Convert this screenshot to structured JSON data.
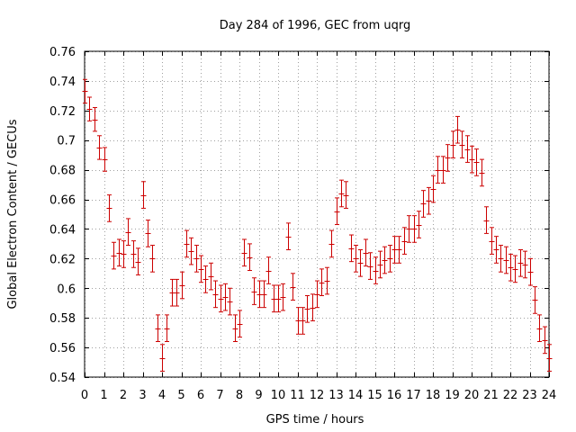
{
  "chart_data": {
    "type": "scatter",
    "title": "Day 284 of 1996, GEC from uqrg",
    "xlabel": "GPS time / hours",
    "ylabel": "Global Electron Content / GECUs",
    "xlim": [
      0,
      24
    ],
    "ylim": [
      0.54,
      0.76
    ],
    "xticks": [
      "0",
      "1",
      "2",
      "3",
      "4",
      "5",
      "6",
      "7",
      "8",
      "9",
      "10",
      "11",
      "12",
      "13",
      "14",
      "15",
      "16",
      "17",
      "18",
      "19",
      "20",
      "21",
      "22",
      "23",
      "24"
    ],
    "yticks": [
      "0.54",
      "0.56",
      "0.58",
      "0.6",
      "0.62",
      "0.64",
      "0.66",
      "0.68",
      "0.7",
      "0.72",
      "0.74",
      "0.76"
    ],
    "grid": true,
    "marker_color": "#cc0000",
    "series": [
      {
        "x": [
          0.0,
          0.25,
          0.5,
          0.75,
          1.0,
          1.25,
          1.5,
          1.75,
          2.0,
          2.25,
          2.5,
          2.75,
          3.0,
          3.25,
          3.5,
          3.75,
          4.0,
          4.25,
          4.5,
          4.75,
          5.0,
          5.25,
          5.5,
          5.75,
          6.0,
          6.25,
          6.5,
          6.75,
          7.0,
          7.25,
          7.5,
          7.75,
          8.0,
          8.25,
          8.5,
          8.75,
          9.0,
          9.25,
          9.5,
          9.75,
          10.0,
          10.25,
          10.5,
          10.75,
          11.0,
          11.25,
          11.5,
          11.75,
          12.0,
          12.25,
          12.5,
          12.75,
          13.0,
          13.25,
          13.5,
          13.75,
          14.0,
          14.25,
          14.5,
          14.75,
          15.0,
          15.25,
          15.5,
          15.75,
          16.0,
          16.25,
          16.5,
          16.75,
          17.0,
          17.25,
          17.5,
          17.75,
          18.0,
          18.25,
          18.5,
          18.75,
          19.0,
          19.25,
          19.5,
          19.75,
          20.0,
          20.25,
          20.5,
          20.75,
          21.0,
          21.25,
          21.5,
          21.75,
          22.0,
          22.25,
          22.5,
          22.75,
          23.0,
          23.25,
          23.5,
          23.75,
          24.0
        ],
        "y": [
          0.733,
          0.721,
          0.714,
          0.695,
          0.687,
          0.654,
          0.622,
          0.624,
          0.623,
          0.638,
          0.623,
          0.618,
          0.663,
          0.637,
          0.62,
          0.573,
          0.553,
          0.573,
          0.597,
          0.597,
          0.602,
          0.63,
          0.625,
          0.62,
          0.613,
          0.606,
          0.608,
          0.596,
          0.593,
          0.594,
          0.591,
          0.573,
          0.576,
          0.624,
          0.621,
          0.598,
          0.596,
          0.596,
          0.612,
          0.593,
          0.593,
          0.594,
          0.635,
          0.601,
          0.578,
          0.578,
          0.586,
          0.587,
          0.596,
          0.604,
          0.605,
          0.63,
          0.652,
          0.664,
          0.663,
          0.627,
          0.62,
          0.617,
          0.624,
          0.615,
          0.612,
          0.616,
          0.619,
          0.62,
          0.626,
          0.626,
          0.632,
          0.64,
          0.64,
          0.643,
          0.657,
          0.659,
          0.667,
          0.68,
          0.68,
          0.688,
          0.697,
          0.707,
          0.697,
          0.694,
          0.687,
          0.685,
          0.678,
          0.646,
          0.632,
          0.626,
          0.62,
          0.619,
          0.614,
          0.613,
          0.617,
          0.616,
          0.611,
          0.592,
          0.573,
          0.565,
          0.553
        ],
        "err": [
          0.008,
          0.008,
          0.008,
          0.008,
          0.008,
          0.009,
          0.009,
          0.009,
          0.009,
          0.009,
          0.009,
          0.009,
          0.009,
          0.009,
          0.009,
          0.009,
          0.009,
          0.009,
          0.009,
          0.009,
          0.009,
          0.009,
          0.009,
          0.009,
          0.009,
          0.009,
          0.009,
          0.009,
          0.009,
          0.009,
          0.009,
          0.009,
          0.009,
          0.009,
          0.009,
          0.009,
          0.009,
          0.009,
          0.009,
          0.009,
          0.009,
          0.009,
          0.009,
          0.009,
          0.009,
          0.009,
          0.009,
          0.009,
          0.009,
          0.009,
          0.009,
          0.009,
          0.009,
          0.009,
          0.009,
          0.009,
          0.009,
          0.009,
          0.009,
          0.009,
          0.009,
          0.009,
          0.009,
          0.009,
          0.009,
          0.009,
          0.009,
          0.009,
          0.009,
          0.009,
          0.009,
          0.009,
          0.009,
          0.009,
          0.009,
          0.009,
          0.009,
          0.009,
          0.009,
          0.009,
          0.009,
          0.009,
          0.009,
          0.009,
          0.009,
          0.009,
          0.009,
          0.009,
          0.009,
          0.009,
          0.009,
          0.009,
          0.009,
          0.009,
          0.009,
          0.009,
          0.009
        ]
      }
    ]
  }
}
